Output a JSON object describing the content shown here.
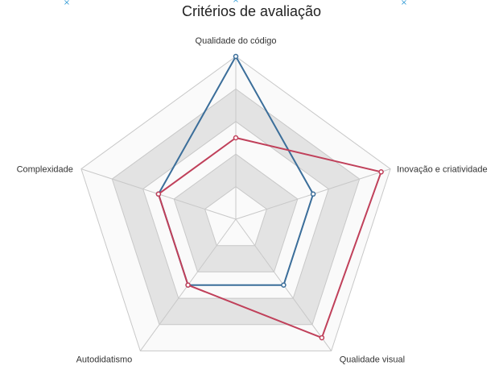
{
  "chart_data": {
    "type": "radar",
    "title": "Critérios de avaliação",
    "axes": [
      "Qualidade do código",
      "Inovação e criatividade",
      "Qualidade visual",
      "Autodidatismo",
      "Complexidade"
    ],
    "rlim": [
      0,
      5
    ],
    "levels": 5,
    "series": [
      {
        "color": "#3b6e9a",
        "values": [
          5,
          2.5,
          2.5,
          2.5,
          2.5
        ]
      },
      {
        "color": "#c0405a",
        "values": [
          2.5,
          4.7,
          4.5,
          2.5,
          2.5
        ]
      }
    ],
    "grid_colors": [
      "#fafafa",
      "#e3e3e3"
    ],
    "grid_line_color": "#c8c8c8"
  }
}
